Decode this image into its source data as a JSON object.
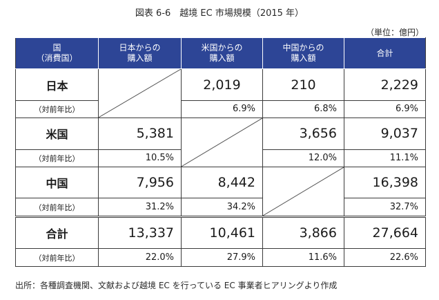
{
  "title": "図表 6-6　越境 EC 市場規模（2015 年）",
  "unit": "（単位：億円）",
  "headers": {
    "h0_line1": "国",
    "h0_line2": "（消費国）",
    "h1_line1": "日本からの",
    "h1_line2": "購入額",
    "h2_line1": "米国からの",
    "h2_line2": "購入額",
    "h3_line1": "中国からの",
    "h3_line2": "購入額",
    "h4": "合計"
  },
  "rows": [
    {
      "label": "日本",
      "sublabel": "（対前年比）",
      "from_japan": "",
      "from_japan_pct": "",
      "from_us": "2,019",
      "from_us_pct": "6.9%",
      "from_china": "210",
      "from_china_pct": "6.8%",
      "total": "2,229",
      "total_pct": "6.9%"
    },
    {
      "label": "米国",
      "sublabel": "（対前年比）",
      "from_japan": "5,381",
      "from_japan_pct": "10.5%",
      "from_us": "",
      "from_us_pct": "",
      "from_china": "3,656",
      "from_china_pct": "12.0%",
      "total": "9,037",
      "total_pct": "11.1%"
    },
    {
      "label": "中国",
      "sublabel": "（対前年比）",
      "from_japan": "7,956",
      "from_japan_pct": "31.2%",
      "from_us": "8,442",
      "from_us_pct": "34.2%",
      "from_china": "",
      "from_china_pct": "",
      "total": "16,398",
      "total_pct": "32.7%"
    },
    {
      "label": "合計",
      "sublabel": "（対前年比）",
      "from_japan": "13,337",
      "from_japan_pct": "22.0%",
      "from_us": "10,461",
      "from_us_pct": "27.9%",
      "from_china": "3,866",
      "from_china_pct": "11.6%",
      "total": "27,664",
      "total_pct": "22.6%"
    }
  ],
  "source": "出所：各種調査機関、文献および越境 EC を行っている EC 事業者ヒアリングより作成",
  "colors": {
    "header_bg": "#2d4596",
    "header_text": "#ffffff",
    "border": "#3a3a3a"
  }
}
